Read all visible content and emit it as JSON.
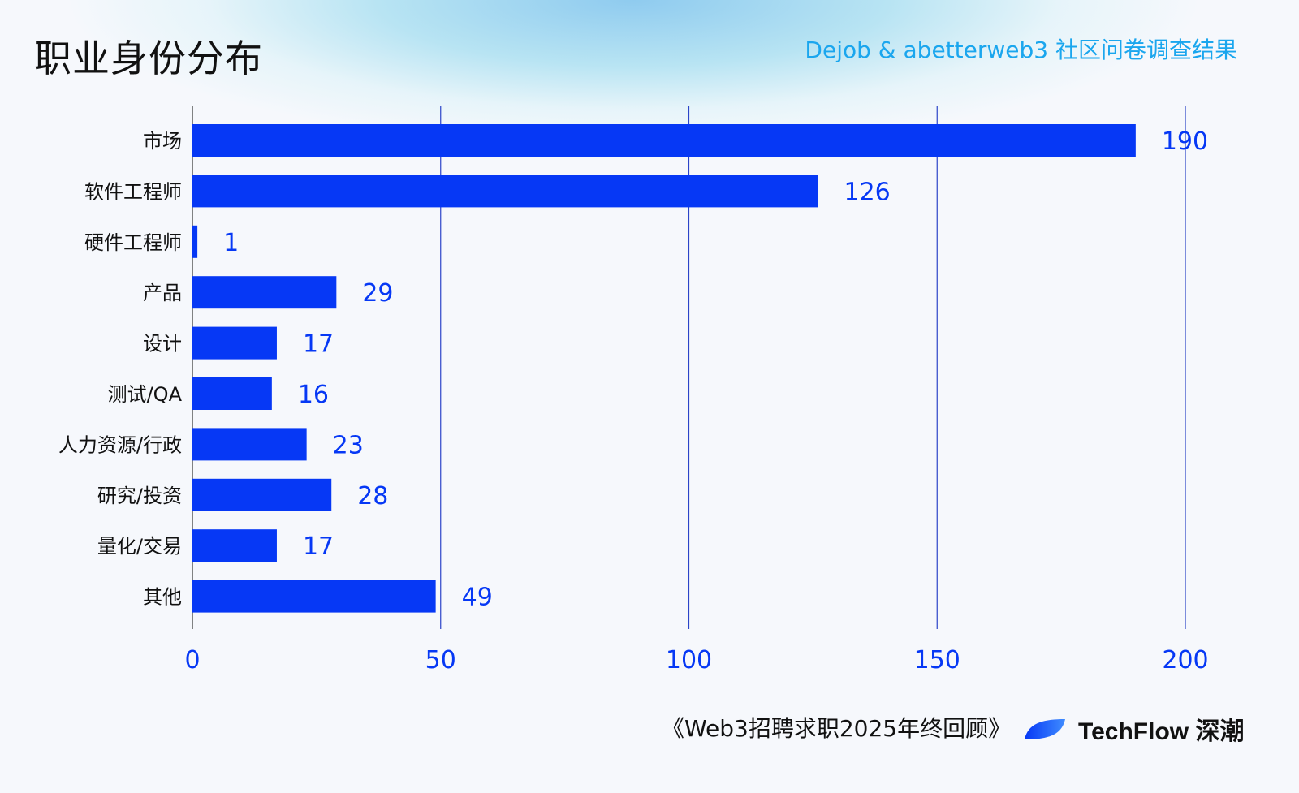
{
  "header": {
    "title": "职业身份分布",
    "source": "Dejob & abetterweb3 社区问卷调查结果"
  },
  "footer": {
    "report": "《Web3招聘求职2025年终回顾》",
    "brand": "TechFlow 深潮"
  },
  "colors": {
    "bar": "#0638f5",
    "label": "#0638f5",
    "grid": "#2b44c8",
    "subtitle": "#1aa6ee"
  },
  "chart_data": {
    "type": "bar",
    "orientation": "horizontal",
    "title": "职业身份分布",
    "categories": [
      "市场",
      "软件工程师",
      "硬件工程师",
      "产品",
      "设计",
      "测试/QA",
      "人力资源/行政",
      "研究/投资",
      "量化/交易",
      "其他"
    ],
    "values": [
      190,
      126,
      1,
      29,
      17,
      16,
      23,
      28,
      17,
      49
    ],
    "xlim": [
      0,
      200
    ],
    "xticks": [
      0,
      50,
      100,
      150,
      200
    ],
    "grid": true,
    "data_labels": true
  }
}
